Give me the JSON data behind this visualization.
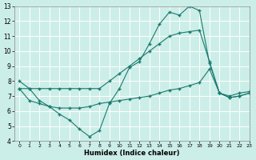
{
  "xlabel": "Humidex (Indice chaleur)",
  "xlim": [
    -0.5,
    23
  ],
  "ylim": [
    4,
    13
  ],
  "yticks": [
    4,
    5,
    6,
    7,
    8,
    9,
    10,
    11,
    12,
    13
  ],
  "xticks": [
    0,
    1,
    2,
    3,
    4,
    5,
    6,
    7,
    8,
    9,
    10,
    11,
    12,
    13,
    14,
    15,
    16,
    17,
    18,
    19,
    20,
    21,
    22,
    23
  ],
  "background_color": "#cceee8",
  "grid_color": "#ffffff",
  "line_color": "#1a7a6e",
  "line1_x": [
    0,
    1,
    2,
    3,
    4,
    5,
    6,
    7,
    8,
    9,
    10,
    11,
    12,
    13,
    14,
    15,
    16,
    17,
    18,
    19,
    20,
    21,
    22,
    23
  ],
  "line1_y": [
    8.0,
    7.5,
    6.7,
    6.3,
    5.8,
    5.4,
    4.8,
    4.3,
    4.7,
    6.5,
    7.5,
    8.9,
    9.3,
    10.5,
    11.8,
    12.6,
    12.4,
    13.0,
    12.7,
    9.2,
    7.2,
    6.9,
    7.0,
    7.2
  ],
  "line2_x": [
    0,
    1,
    2,
    3,
    4,
    5,
    6,
    7,
    8,
    9,
    10,
    11,
    12,
    13,
    14,
    15,
    16,
    17,
    18,
    19,
    20,
    21,
    22,
    23
  ],
  "line2_y": [
    7.5,
    7.5,
    7.5,
    7.5,
    7.5,
    7.5,
    7.5,
    7.5,
    7.5,
    8.0,
    8.5,
    9.0,
    9.5,
    10.0,
    10.5,
    11.0,
    11.2,
    11.3,
    11.4,
    9.3,
    7.2,
    7.0,
    7.2,
    7.3
  ],
  "line3_x": [
    0,
    1,
    2,
    3,
    4,
    5,
    6,
    7,
    8,
    9,
    10,
    11,
    12,
    13,
    14,
    15,
    16,
    17,
    18,
    19,
    20,
    21,
    22,
    23
  ],
  "line3_y": [
    7.5,
    6.7,
    6.5,
    6.3,
    6.2,
    6.2,
    6.2,
    6.3,
    6.5,
    6.6,
    6.7,
    6.8,
    6.9,
    7.0,
    7.2,
    7.4,
    7.5,
    7.7,
    7.9,
    8.8,
    7.2,
    6.9,
    7.0,
    7.2
  ]
}
